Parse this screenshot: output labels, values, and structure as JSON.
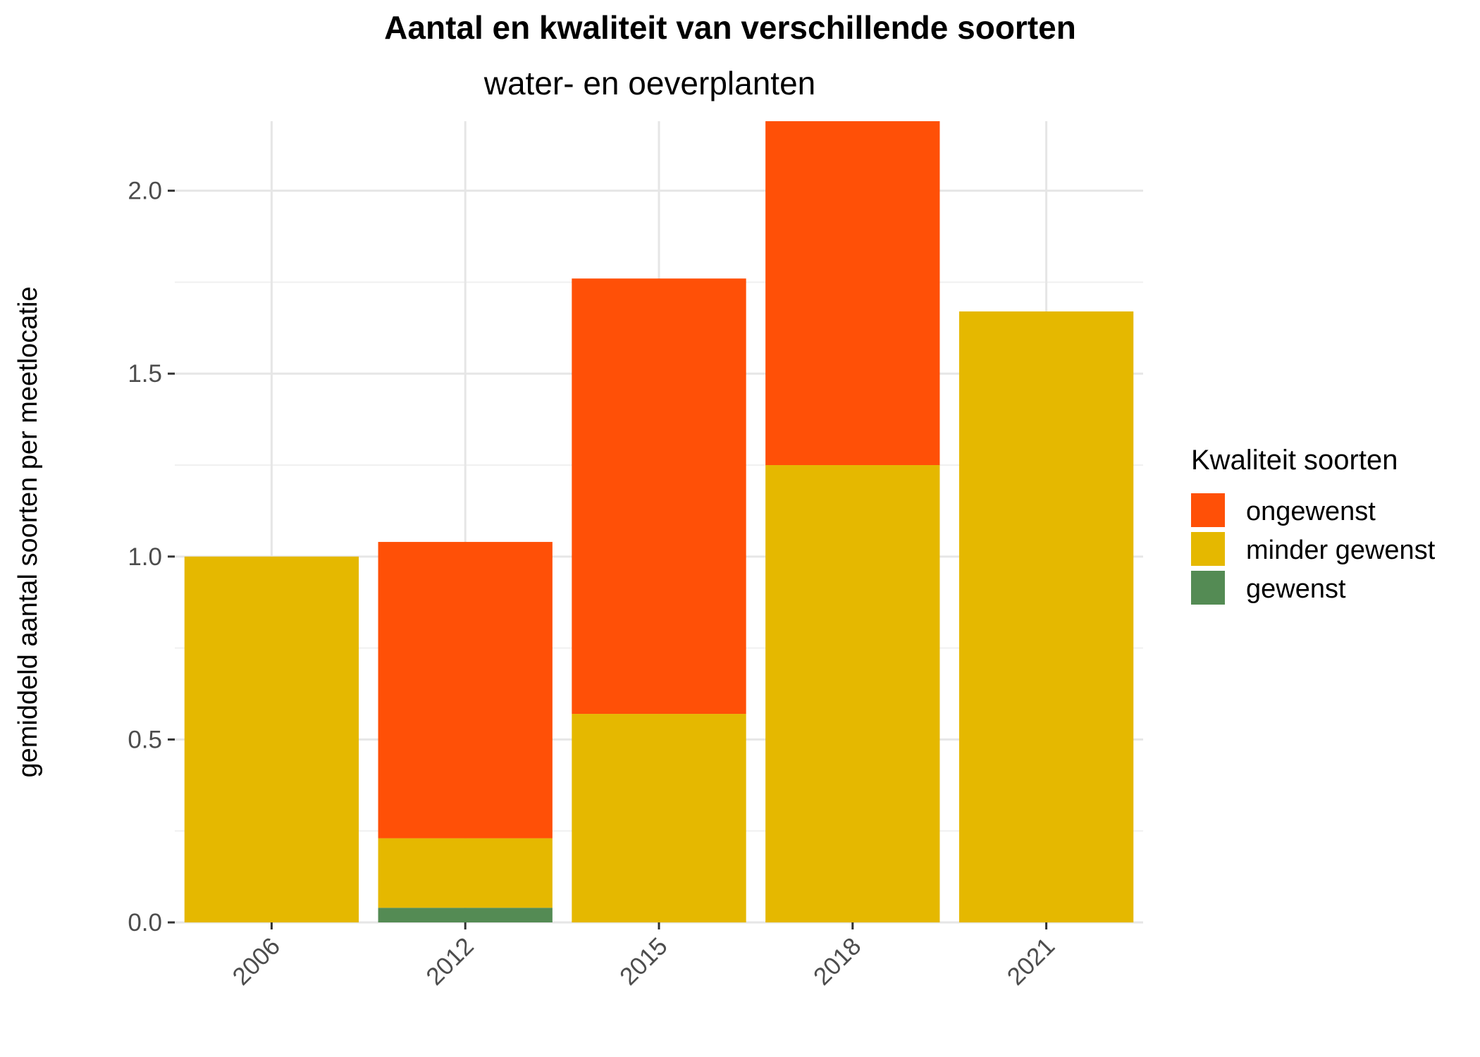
{
  "chart_data": {
    "type": "bar",
    "stacked": true,
    "title": "Aantal en kwaliteit van verschillende soorten",
    "subtitle": "water- en oeverplanten",
    "xlabel": "",
    "ylabel": "gemiddeld aantal soorten per meetlocatie",
    "categories": [
      "2006",
      "2012",
      "2015",
      "2018",
      "2021"
    ],
    "ylim": [
      0,
      2.19
    ],
    "yticks": [
      "0.0",
      "0.5",
      "1.0",
      "1.5",
      "2.0"
    ],
    "grid": true,
    "legend_title": "Kwaliteit soorten",
    "legend_position": "right",
    "series": [
      {
        "name": "gewenst",
        "color": "#548B54",
        "values": [
          0,
          0.04,
          0,
          0,
          0
        ]
      },
      {
        "name": "minder gewenst",
        "color": "#E5B800",
        "values": [
          1.0,
          0.19,
          0.57,
          1.25,
          1.67
        ]
      },
      {
        "name": "ongewenst",
        "color": "#FF5007",
        "values": [
          0,
          0.81,
          1.19,
          0.94,
          0
        ]
      }
    ]
  }
}
